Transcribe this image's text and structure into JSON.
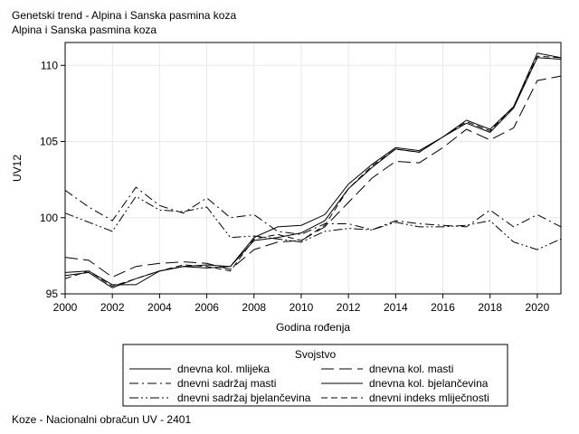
{
  "chart_data": {
    "type": "line",
    "title": "Genetski trend - Alpina i Sanska pasmina koza",
    "subtitle": "Alpina i Sanska pasmina koza",
    "xlabel": "Godina rođenja",
    "ylabel": "UV12",
    "xlim": [
      2000,
      2021
    ],
    "ylim": [
      95,
      111.5
    ],
    "x_ticks": [
      2000,
      2002,
      2004,
      2006,
      2008,
      2010,
      2012,
      2014,
      2016,
      2018,
      2020
    ],
    "y_ticks": [
      95,
      100,
      105,
      110
    ],
    "grid": true,
    "legend": {
      "title": "Svojstvo",
      "placement": "bottom"
    },
    "x": [
      2000,
      2001,
      2002,
      2003,
      2004,
      2005,
      2006,
      2007,
      2008,
      2009,
      2010,
      2011,
      2012,
      2013,
      2014,
      2015,
      2016,
      2017,
      2018,
      2019,
      2020,
      2021
    ],
    "series": [
      {
        "name": "dnevna kol. mlijeka",
        "dash": "solid",
        "values": [
          96.2,
          96.4,
          95.4,
          96.0,
          96.5,
          96.8,
          96.7,
          96.8,
          98.7,
          99.4,
          99.5,
          100.2,
          102.2,
          103.5,
          104.6,
          104.4,
          105.3,
          106.4,
          105.8,
          107.3,
          110.8,
          110.5
        ]
      },
      {
        "name": "dnevna kol. masti",
        "dash": "longdash",
        "values": [
          97.4,
          97.2,
          96.1,
          96.8,
          97.0,
          97.1,
          97.0,
          96.6,
          97.9,
          98.4,
          98.5,
          99.4,
          101.0,
          102.6,
          103.7,
          103.6,
          104.6,
          105.8,
          105.1,
          105.9,
          109.0,
          109.3
        ]
      },
      {
        "name": "dnevni sadržaj masti",
        "dash": "dashdot",
        "values": [
          101.8,
          100.7,
          99.8,
          102.0,
          100.8,
          100.3,
          101.3,
          100.0,
          100.2,
          99.1,
          98.9,
          99.6,
          99.6,
          99.2,
          99.8,
          99.6,
          99.5,
          99.4,
          100.5,
          99.4,
          100.2,
          99.4
        ]
      },
      {
        "name": "dnevna kol. bjelančevina",
        "dash": "solid",
        "values": [
          96.4,
          96.5,
          95.6,
          95.6,
          96.5,
          96.8,
          96.9,
          96.8,
          98.5,
          98.7,
          99.0,
          99.8,
          101.9,
          103.3,
          104.5,
          104.3,
          105.3,
          106.2,
          105.6,
          107.2,
          110.5,
          110.4
        ]
      },
      {
        "name": "dnevni sadržaj bjelančevina",
        "dash": "dashdotdot",
        "values": [
          100.3,
          99.7,
          99.1,
          101.4,
          100.5,
          100.4,
          100.7,
          98.7,
          98.8,
          98.6,
          98.4,
          99.1,
          99.3,
          99.2,
          99.7,
          99.4,
          99.4,
          99.5,
          99.8,
          98.4,
          97.9,
          98.6
        ]
      },
      {
        "name": "dnevni indeks mliječnosti",
        "dash": "mediumdash",
        "values": [
          96.0,
          96.5,
          95.5,
          96.0,
          96.5,
          96.9,
          96.8,
          96.5,
          98.6,
          98.9,
          98.5,
          99.5,
          101.9,
          103.4,
          104.5,
          104.3,
          105.3,
          106.3,
          105.7,
          107.3,
          110.6,
          110.5
        ]
      }
    ]
  },
  "footnote": "Koze - Nacionalni obračun UV - 2401"
}
